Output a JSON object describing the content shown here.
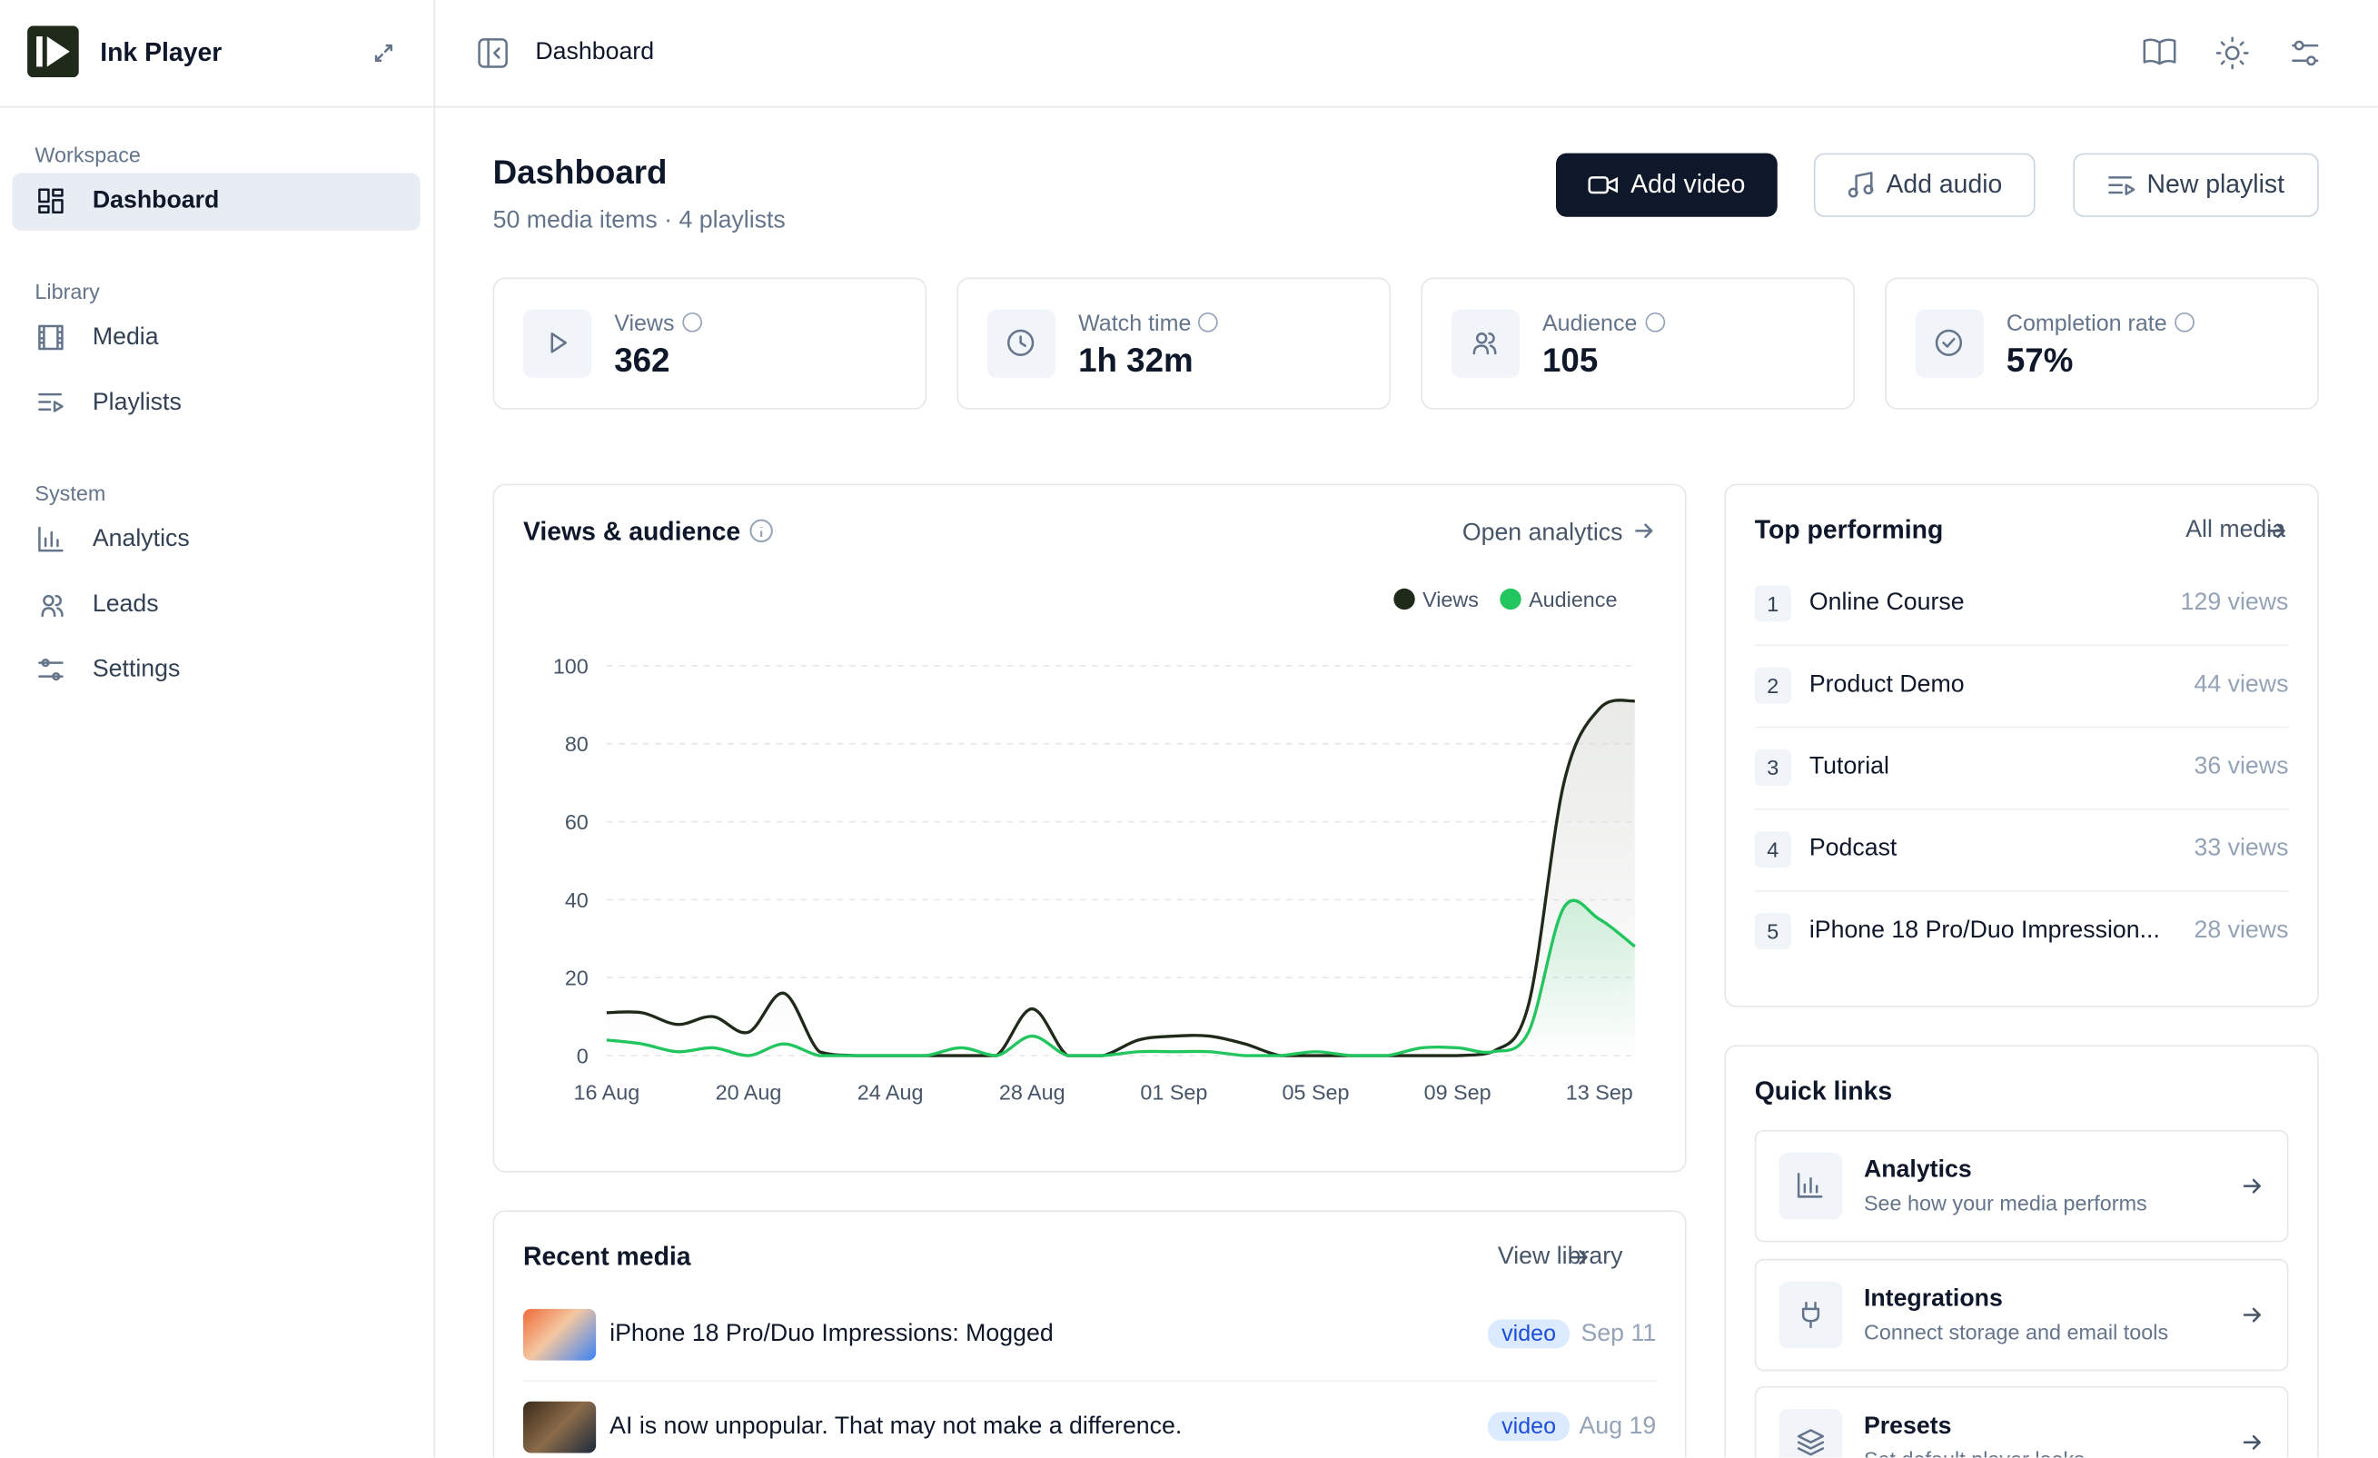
{
  "sidebar": {
    "brand": "Ink Player",
    "sections": [
      {
        "label": "Workspace",
        "items": [
          "Dashboard"
        ]
      },
      {
        "label": "Library",
        "items": [
          "Media",
          "Playlists"
        ]
      },
      {
        "label": "System",
        "items": [
          "Analytics",
          "Leads",
          "Settings"
        ]
      }
    ]
  },
  "topbar": {
    "title": "Dashboard"
  },
  "header": {
    "title": "Dashboard",
    "subtitle": "50 media items · 4 playlists",
    "buttons": [
      "Add video",
      "Add audio",
      "New playlist"
    ]
  },
  "stats": [
    {
      "label": "Views",
      "value": "362"
    },
    {
      "label": "Watch time",
      "value": "1h 32m"
    },
    {
      "label": "Audience",
      "value": "105"
    },
    {
      "label": "Completion rate",
      "value": "57%"
    }
  ],
  "chart_card": {
    "link": "Open analytics"
  },
  "chart_data": {
    "type": "line",
    "title": "Views & audience",
    "categories": [
      "16 Aug",
      null,
      null,
      null,
      "20 Aug",
      null,
      null,
      null,
      "24 Aug",
      null,
      null,
      null,
      "28 Aug",
      null,
      null,
      null,
      "01 Sep",
      null,
      null,
      null,
      "05 Sep",
      null,
      null,
      null,
      "09 Sep",
      null,
      null,
      null,
      "13 Sep",
      null
    ],
    "series": [
      {
        "name": "Views",
        "color": "#1f2a1a",
        "values": [
          11,
          11,
          8,
          10,
          6,
          16,
          1,
          0,
          0,
          0,
          0,
          0,
          12,
          0,
          0,
          4,
          5,
          5,
          3,
          0,
          0,
          0,
          0,
          0,
          0,
          1,
          13,
          70,
          89,
          91
        ]
      },
      {
        "name": "Audience",
        "color": "#22c55e",
        "values": [
          4,
          3,
          1,
          2,
          0,
          3,
          0,
          0,
          0,
          0,
          2,
          0,
          5,
          0,
          0,
          1,
          1,
          1,
          0,
          0,
          1,
          0,
          0,
          2,
          2,
          1,
          6,
          38,
          35,
          28
        ]
      }
    ],
    "ylim": [
      0,
      100
    ],
    "yticks": [
      0,
      20,
      40,
      60,
      80,
      100
    ],
    "grid": true,
    "legend": "top-right"
  },
  "top_performing": {
    "title": "Top performing",
    "link": "All media",
    "items": [
      {
        "rank": 1,
        "name": "Online Course",
        "views": "129 views"
      },
      {
        "rank": 2,
        "name": "Product Demo",
        "views": "44 views"
      },
      {
        "rank": 3,
        "name": "Tutorial",
        "views": "36 views"
      },
      {
        "rank": 4,
        "name": "Podcast",
        "views": "33 views"
      },
      {
        "rank": 5,
        "name": "iPhone 18 Pro/Duo Impression...",
        "views": "28 views"
      }
    ]
  },
  "recent_media": {
    "title": "Recent media",
    "link": "View library",
    "items": [
      {
        "title": "iPhone 18 Pro/Duo Impressions: Mogged",
        "type": "video",
        "date": "Sep 11"
      },
      {
        "title": "AI is now unpopular. That may not make a difference.",
        "type": "video",
        "date": "Aug 19"
      }
    ]
  },
  "quick_links": {
    "title": "Quick links",
    "items": [
      {
        "title": "Analytics",
        "desc": "See how your media performs"
      },
      {
        "title": "Integrations",
        "desc": "Connect storage and email tools"
      },
      {
        "title": "Presets",
        "desc": "Set default player looks"
      }
    ]
  }
}
